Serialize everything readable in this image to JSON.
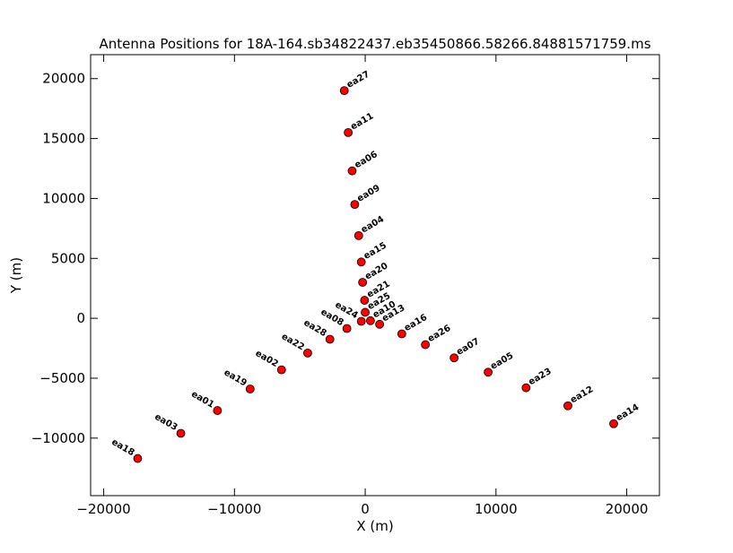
{
  "chart_data": {
    "type": "scatter",
    "title": "Antenna Positions for 18A-164.sb34822437.eb35450866.58266.84881571759.ms",
    "xlabel": "X (m)",
    "ylabel": "Y (m)",
    "xlim": [
      -21000,
      22500
    ],
    "ylim": [
      -14800,
      22000
    ],
    "xticks": [
      -20000,
      -10000,
      0,
      10000,
      20000
    ],
    "xtick_labels": [
      "−20000",
      "−10000",
      "0",
      "10000",
      "20000"
    ],
    "yticks": [
      -10000,
      -5000,
      0,
      5000,
      10000,
      15000,
      20000
    ],
    "ytick_labels": [
      "−10000",
      "−5000",
      "0",
      "5000",
      "10000",
      "15000",
      "20000"
    ],
    "grid": false,
    "marker_color": "#ff0000",
    "marker_edge": "#000000",
    "points": [
      {
        "label": "ea27",
        "x": -1600,
        "y": 19000,
        "side": "right"
      },
      {
        "label": "ea11",
        "x": -1300,
        "y": 15500,
        "side": "right"
      },
      {
        "label": "ea06",
        "x": -1000,
        "y": 12300,
        "side": "right"
      },
      {
        "label": "ea09",
        "x": -800,
        "y": 9500,
        "side": "right"
      },
      {
        "label": "ea04",
        "x": -500,
        "y": 6900,
        "side": "right"
      },
      {
        "label": "ea15",
        "x": -300,
        "y": 4700,
        "side": "right"
      },
      {
        "label": "ea20",
        "x": -200,
        "y": 3000,
        "side": "right"
      },
      {
        "label": "ea21",
        "x": -50,
        "y": 1500,
        "side": "right"
      },
      {
        "label": "ea25",
        "x": 0,
        "y": 500,
        "side": "right"
      },
      {
        "label": "ea10",
        "x": 400,
        "y": -200,
        "side": "right"
      },
      {
        "label": "ea13",
        "x": 1100,
        "y": -500,
        "side": "right"
      },
      {
        "label": "ea16",
        "x": 2800,
        "y": -1300,
        "side": "right"
      },
      {
        "label": "ea26",
        "x": 4600,
        "y": -2200,
        "side": "right"
      },
      {
        "label": "ea07",
        "x": 6800,
        "y": -3300,
        "side": "right"
      },
      {
        "label": "ea05",
        "x": 9400,
        "y": -4500,
        "side": "right"
      },
      {
        "label": "ea23",
        "x": 12300,
        "y": -5800,
        "side": "right"
      },
      {
        "label": "ea12",
        "x": 15500,
        "y": -7300,
        "side": "right"
      },
      {
        "label": "ea14",
        "x": 19000,
        "y": -8800,
        "side": "right"
      },
      {
        "label": "ea24",
        "x": -300,
        "y": -250,
        "side": "left"
      },
      {
        "label": "ea08",
        "x": -1400,
        "y": -850,
        "side": "left"
      },
      {
        "label": "ea28",
        "x": -2700,
        "y": -1750,
        "side": "left"
      },
      {
        "label": "ea22",
        "x": -4400,
        "y": -2900,
        "side": "left"
      },
      {
        "label": "ea02",
        "x": -6400,
        "y": -4300,
        "side": "left"
      },
      {
        "label": "ea19",
        "x": -8800,
        "y": -5900,
        "side": "left"
      },
      {
        "label": "ea01",
        "x": -11300,
        "y": -7700,
        "side": "left"
      },
      {
        "label": "ea03",
        "x": -14100,
        "y": -9600,
        "side": "left"
      },
      {
        "label": "ea18",
        "x": -17400,
        "y": -11700,
        "side": "left"
      }
    ]
  }
}
